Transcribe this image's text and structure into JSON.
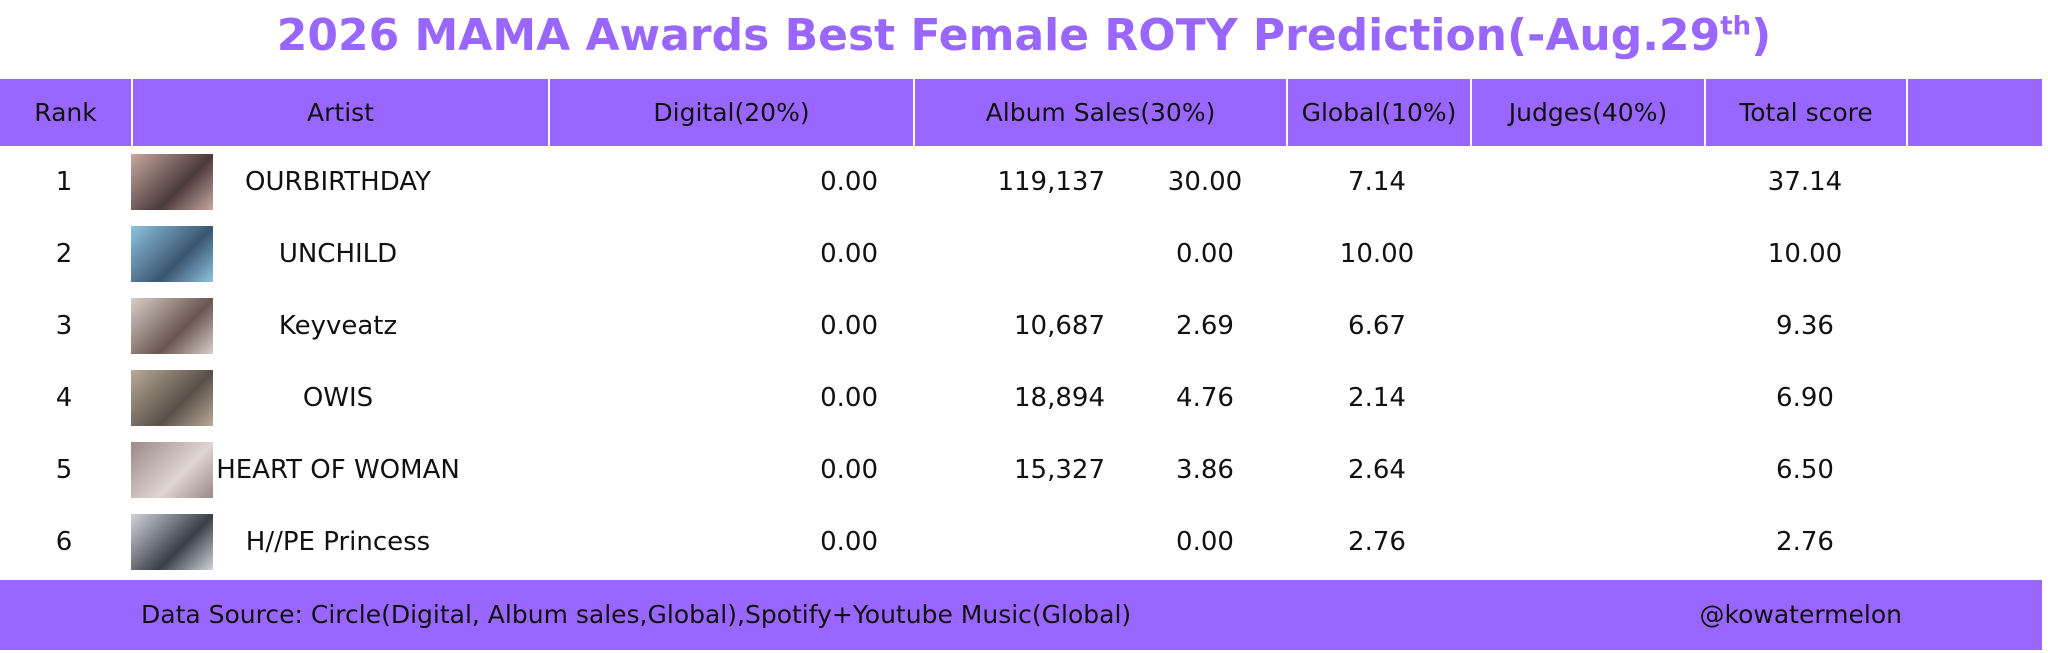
{
  "header": {
    "title": [
      "2026 MAMA Awards Best Female ROTY Prediction(-Aug.29",
      "th",
      ")"
    ]
  },
  "table": {
    "columns": [
      "Rank",
      "Artist",
      "Digital(20%)",
      "Album Sales(30%)",
      "Global(10%)",
      "Judges(40%)",
      "Total score"
    ],
    "rows": [
      {
        "rank": "1",
        "artist": "OURBIRTHDAY",
        "digital": "0.00",
        "album_sales": "119,137",
        "album_score": "30.00",
        "global": "7.14",
        "total": "37.14"
      },
      {
        "rank": "2",
        "artist": "UNCHILD",
        "digital": "0.00",
        "album_sales": null,
        "album_score": "0.00",
        "global": "10.00",
        "total": "10.00"
      },
      {
        "rank": "3",
        "artist": "Keyveatz",
        "digital": "0.00",
        "album_sales": "10,687",
        "album_score": "2.69",
        "global": "6.67",
        "total": "9.36"
      },
      {
        "rank": "4",
        "artist": "OWIS",
        "digital": "0.00",
        "album_sales": "18,894",
        "album_score": "4.76",
        "global": "2.14",
        "total": "6.90"
      },
      {
        "rank": "5",
        "artist": "HEART OF WOMAN",
        "digital": "0.00",
        "album_sales": "15,327",
        "album_score": "3.86",
        "global": "2.64",
        "total": "6.50"
      },
      {
        "rank": "6",
        "artist": "H//PE Princess",
        "digital": "0.00",
        "album_sales": null,
        "album_score": "0.00",
        "global": "2.76",
        "total": "2.76"
      }
    ]
  },
  "footer": {
    "source": "Data Source: Circle(Digital, Album sales,Global),Spotify+Youtube Music(Global)",
    "handle": "@kowatermelon"
  }
}
